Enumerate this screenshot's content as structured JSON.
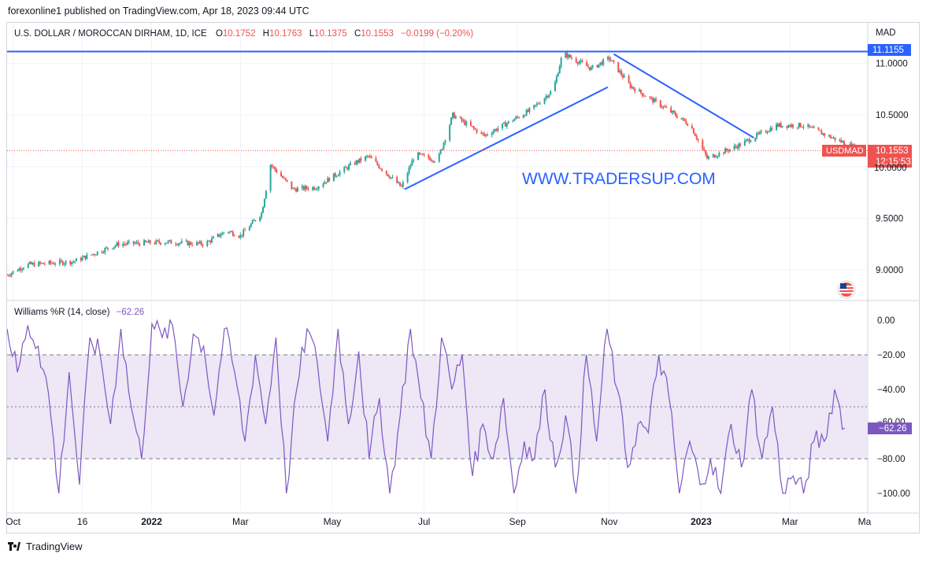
{
  "header": {
    "publisher_line": "forexonline1 published on TradingView.com, Apr 18, 2023 09:44 UTC"
  },
  "legend": {
    "symbol": "U.S. DOLLAR / MOROCCAN DIRHAM, 1D, ICE",
    "open_label": "O",
    "open": "10.1752",
    "high_label": "H",
    "high": "10.1763",
    "low_label": "L",
    "low": "10.1375",
    "close_label": "C",
    "close": "10.1553",
    "change": "−0.0199 (−0.20%)"
  },
  "price_axis": {
    "unit": "MAD",
    "ticks": [
      "11.0000",
      "10.5000",
      "9.5000",
      "9.0000"
    ],
    "resistance_label": "11.1155",
    "last_symbol": "USDMAD",
    "last_price": "10.1553",
    "countdown": "12:15:53",
    "partial_tick": "10.0000"
  },
  "watermark": {
    "text": "WWW.TRADERSUP.COM"
  },
  "indicator": {
    "title": "Williams %R (14, close)",
    "value": "−62.26",
    "ticks": [
      "0.00",
      "−20.00",
      "−40.00",
      "−80.00",
      "−100.00"
    ],
    "partial_tick": "−60.00"
  },
  "time_axis": {
    "labels": [
      "Oct",
      "16",
      "2022",
      "Mar",
      "May",
      "Jul",
      "Sep",
      "Nov",
      "2023",
      "Mar",
      "Ma"
    ]
  },
  "footer": {
    "brand": "TradingView"
  },
  "colors": {
    "up": "#26a69a",
    "down": "#ef5350",
    "trendline": "#2962ff",
    "williams": "#7e57c2",
    "band_fill": "#ede7f6",
    "text": "#131722"
  },
  "chart_data": [
    {
      "type": "candlestick",
      "title": "U.S. DOLLAR / MOROCCAN DIRHAM, 1D, ICE",
      "ylabel": "MAD",
      "ylim": [
        8.95,
        11.2
      ],
      "x_range": [
        "2021-09-27",
        "2023-04-18"
      ],
      "last": {
        "open": 10.1752,
        "high": 10.1763,
        "low": 10.1375,
        "close": 10.1553
      },
      "anchor_closes": [
        {
          "x": "2021-09-27",
          "close": 8.95
        },
        {
          "x": "2021-10-10",
          "close": 9.05
        },
        {
          "x": "2021-11-10",
          "close": 9.08
        },
        {
          "x": "2021-12-10",
          "close": 9.25
        },
        {
          "x": "2022-01-10",
          "close": 9.27
        },
        {
          "x": "2022-02-05",
          "close": 9.25
        },
        {
          "x": "2022-02-20",
          "close": 9.38
        },
        {
          "x": "2022-03-01",
          "close": 9.33
        },
        {
          "x": "2022-03-15",
          "close": 9.55
        },
        {
          "x": "2022-03-21",
          "close": 10.02
        },
        {
          "x": "2022-04-05",
          "close": 9.78
        },
        {
          "x": "2022-04-20",
          "close": 9.8
        },
        {
          "x": "2022-05-15",
          "close": 10.03
        },
        {
          "x": "2022-05-25",
          "close": 10.1
        },
        {
          "x": "2022-06-16",
          "close": 9.8
        },
        {
          "x": "2022-06-25",
          "close": 10.12
        },
        {
          "x": "2022-07-10",
          "close": 10.06
        },
        {
          "x": "2022-07-20",
          "close": 10.5
        },
        {
          "x": "2022-08-10",
          "close": 10.3
        },
        {
          "x": "2022-09-10",
          "close": 10.55
        },
        {
          "x": "2022-09-25",
          "close": 10.75
        },
        {
          "x": "2022-10-01",
          "close": 11.1
        },
        {
          "x": "2022-10-20",
          "close": 10.95
        },
        {
          "x": "2022-11-01",
          "close": 11.05
        },
        {
          "x": "2022-11-15",
          "close": 10.78
        },
        {
          "x": "2022-12-10",
          "close": 10.55
        },
        {
          "x": "2022-12-25",
          "close": 10.4
        },
        {
          "x": "2023-01-05",
          "close": 10.08
        },
        {
          "x": "2023-01-25",
          "close": 10.2
        },
        {
          "x": "2023-02-20",
          "close": 10.4
        },
        {
          "x": "2023-03-10",
          "close": 10.4
        },
        {
          "x": "2023-04-18",
          "close": 10.1553
        }
      ],
      "annotations": [
        {
          "type": "horizontal_line",
          "y": 11.1155
        },
        {
          "type": "trendline",
          "from": {
            "x": "2022-06-18",
            "y": 9.78
          },
          "to": {
            "x": "2022-10-31",
            "y": 10.77
          }
        },
        {
          "type": "trendline",
          "from": {
            "x": "2022-11-04",
            "y": 11.09
          },
          "to": {
            "x": "2023-02-05",
            "y": 10.28
          }
        },
        {
          "type": "last_price_line",
          "y": 10.1553
        }
      ]
    },
    {
      "type": "line",
      "title": "Williams %R (14, close)",
      "ylim": [
        -100,
        0
      ],
      "bands": {
        "upper": -20,
        "middle": -50,
        "lower": -80
      },
      "last_value": -62.26,
      "series": [
        {
          "x_range": [
            "2021-09-27",
            "2023-04-18"
          ],
          "values": [
            -5,
            -30,
            -3,
            -15,
            -42,
            -100,
            -30,
            -95,
            -10,
            -20,
            -60,
            -5,
            -50,
            -80,
            -2,
            -10,
            -3,
            -50,
            -8,
            -15,
            -55,
            -5,
            -30,
            -70,
            -20,
            -60,
            -10,
            -100,
            -40,
            -5,
            -25,
            -70,
            -5,
            -60,
            -18,
            -80,
            -45,
            -100,
            -55,
            -5,
            -45,
            -80,
            -10,
            -40,
            -20,
            -90,
            -60,
            -80,
            -45,
            -100,
            -70,
            -80,
            -40,
            -85,
            -55,
            -100,
            -20,
            -70,
            -5,
            -40,
            -85,
            -60,
            -65,
            -20,
            -45,
            -100,
            -70,
            -95,
            -80,
            -100,
            -60,
            -85,
            -40,
            -80,
            -50,
            -100,
            -90,
            -100,
            -70,
            -70,
            -40,
            -62.26
          ]
        }
      ]
    }
  ]
}
